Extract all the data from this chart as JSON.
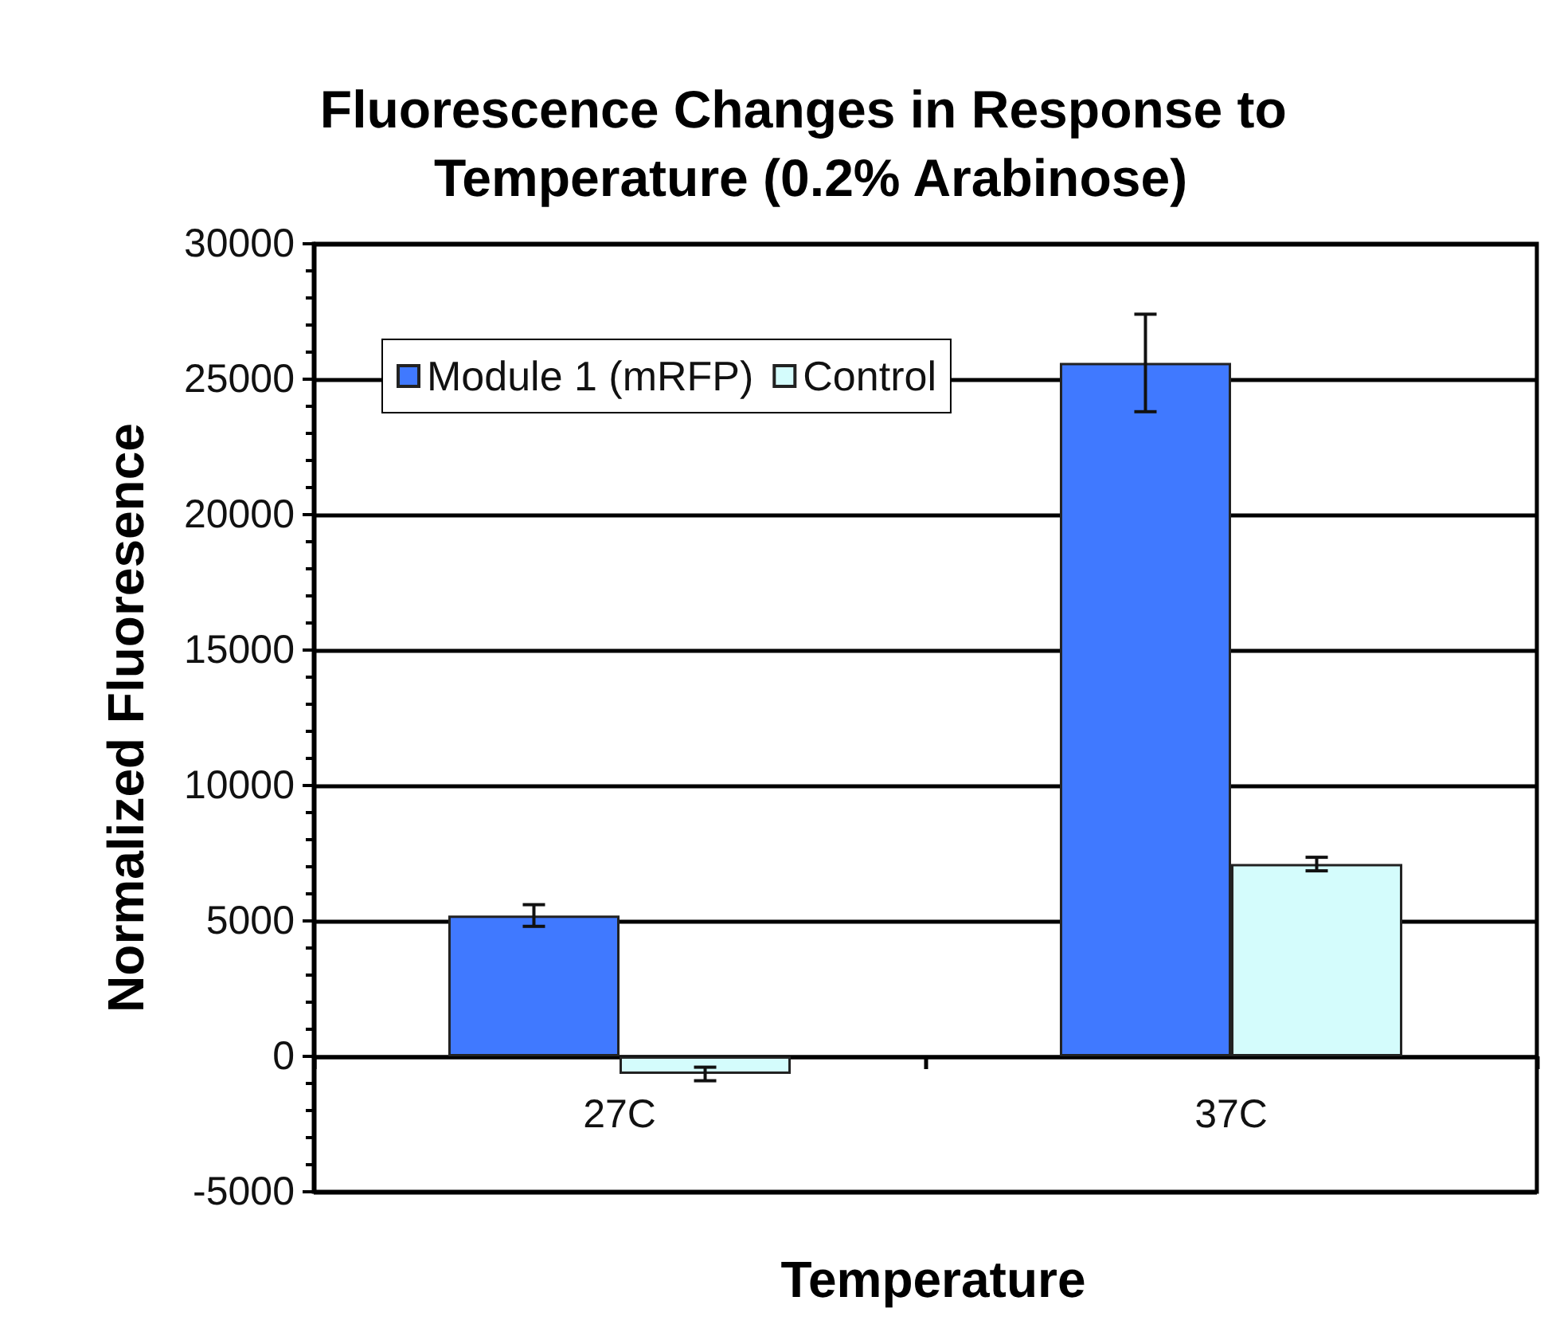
{
  "chart_data": {
    "type": "bar",
    "title": "Fluorescence Changes in Response to Temperature (0.2% Arabinose)",
    "xlabel": "Temperature",
    "ylabel": "Normalized Fluoresence",
    "categories": [
      "27C",
      "37C"
    ],
    "series": [
      {
        "name": "Module 1 (mRFP)",
        "color": "#4079ff",
        "values": [
          5200,
          25600
        ],
        "errors": [
          400,
          1800
        ]
      },
      {
        "name": "Control",
        "color": "#d4fcfc",
        "values": [
          -650,
          7100
        ],
        "errors": [
          250,
          250
        ]
      }
    ],
    "ylim": [
      -5000,
      30000
    ],
    "yticks": [
      -5000,
      {
        "value": -4000,
        "label": null
      },
      {
        "value": -3000,
        "label": null
      },
      {
        "value": -2000,
        "label": null
      },
      {
        "value": -1000,
        "label": null
      },
      0,
      {
        "value": 1000,
        "label": null
      },
      {
        "value": 2000,
        "label": null
      },
      {
        "value": 3000,
        "label": null
      },
      {
        "value": 4000,
        "label": null
      },
      5000,
      {
        "value": 6000,
        "label": null
      },
      {
        "value": 7000,
        "label": null
      },
      {
        "value": 8000,
        "label": null
      },
      {
        "value": 9000,
        "label": null
      },
      10000,
      {
        "value": 11000,
        "label": null
      },
      {
        "value": 12000,
        "label": null
      },
      {
        "value": 13000,
        "label": null
      },
      {
        "value": 14000,
        "label": null
      },
      15000,
      {
        "value": 16000,
        "label": null
      },
      {
        "value": 17000,
        "label": null
      },
      {
        "value": 18000,
        "label": null
      },
      {
        "value": 19000,
        "label": null
      },
      20000,
      {
        "value": 21000,
        "label": null
      },
      {
        "value": 22000,
        "label": null
      },
      {
        "value": 23000,
        "label": null
      },
      {
        "value": 24000,
        "label": null
      },
      25000,
      {
        "value": 26000,
        "label": null
      },
      {
        "value": 27000,
        "label": null
      },
      {
        "value": 28000,
        "label": null
      },
      {
        "value": 29000,
        "label": null
      },
      30000
    ],
    "grid": "y",
    "legend": "top left"
  }
}
